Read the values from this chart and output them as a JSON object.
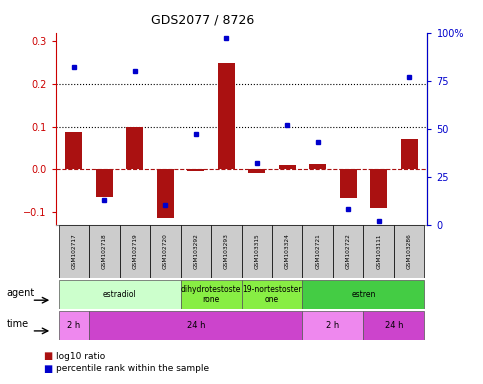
{
  "title": "GDS2077 / 8726",
  "samples": [
    "GSM102717",
    "GSM102718",
    "GSM102719",
    "GSM102720",
    "GSM103292",
    "GSM103293",
    "GSM103315",
    "GSM103324",
    "GSM102721",
    "GSM102722",
    "GSM103111",
    "GSM103286"
  ],
  "log10_ratio": [
    0.088,
    -0.065,
    0.1,
    -0.115,
    -0.005,
    0.248,
    -0.008,
    0.01,
    0.013,
    -0.068,
    -0.09,
    0.07
  ],
  "percentile_pct": [
    82,
    13,
    80,
    10,
    47,
    97,
    32,
    52,
    43,
    8,
    2,
    77
  ],
  "bar_color": "#aa1111",
  "dot_color": "#0000cc",
  "ylim_left": [
    -0.13,
    0.32
  ],
  "ylim_right": [
    0,
    100
  ],
  "yticks_left": [
    -0.1,
    0.0,
    0.1,
    0.2,
    0.3
  ],
  "yticks_right": [
    0,
    25,
    50,
    75,
    100
  ],
  "hline_y": [
    0.1,
    0.2
  ],
  "hline_zero": 0.0,
  "agent_groups": [
    {
      "label": "estradiol",
      "start": 0,
      "end": 4,
      "color": "#ccffcc"
    },
    {
      "label": "dihydrotestoste\nrone",
      "start": 4,
      "end": 6,
      "color": "#88ee44"
    },
    {
      "label": "19-nortestoster\none",
      "start": 6,
      "end": 8,
      "color": "#88ee44"
    },
    {
      "label": "estren",
      "start": 8,
      "end": 12,
      "color": "#44cc44"
    }
  ],
  "time_groups": [
    {
      "label": "2 h",
      "start": 0,
      "end": 1,
      "color": "#ee88ee"
    },
    {
      "label": "24 h",
      "start": 1,
      "end": 8,
      "color": "#cc44cc"
    },
    {
      "label": "2 h",
      "start": 8,
      "end": 10,
      "color": "#ee88ee"
    },
    {
      "label": "24 h",
      "start": 10,
      "end": 12,
      "color": "#cc44cc"
    }
  ],
  "legend_red": "log10 ratio",
  "legend_blue": "percentile rank within the sample",
  "right_axis_color": "#0000cc",
  "left_axis_color": "#cc0000",
  "sample_box_color": "#cccccc",
  "fig_bg": "#ffffff"
}
